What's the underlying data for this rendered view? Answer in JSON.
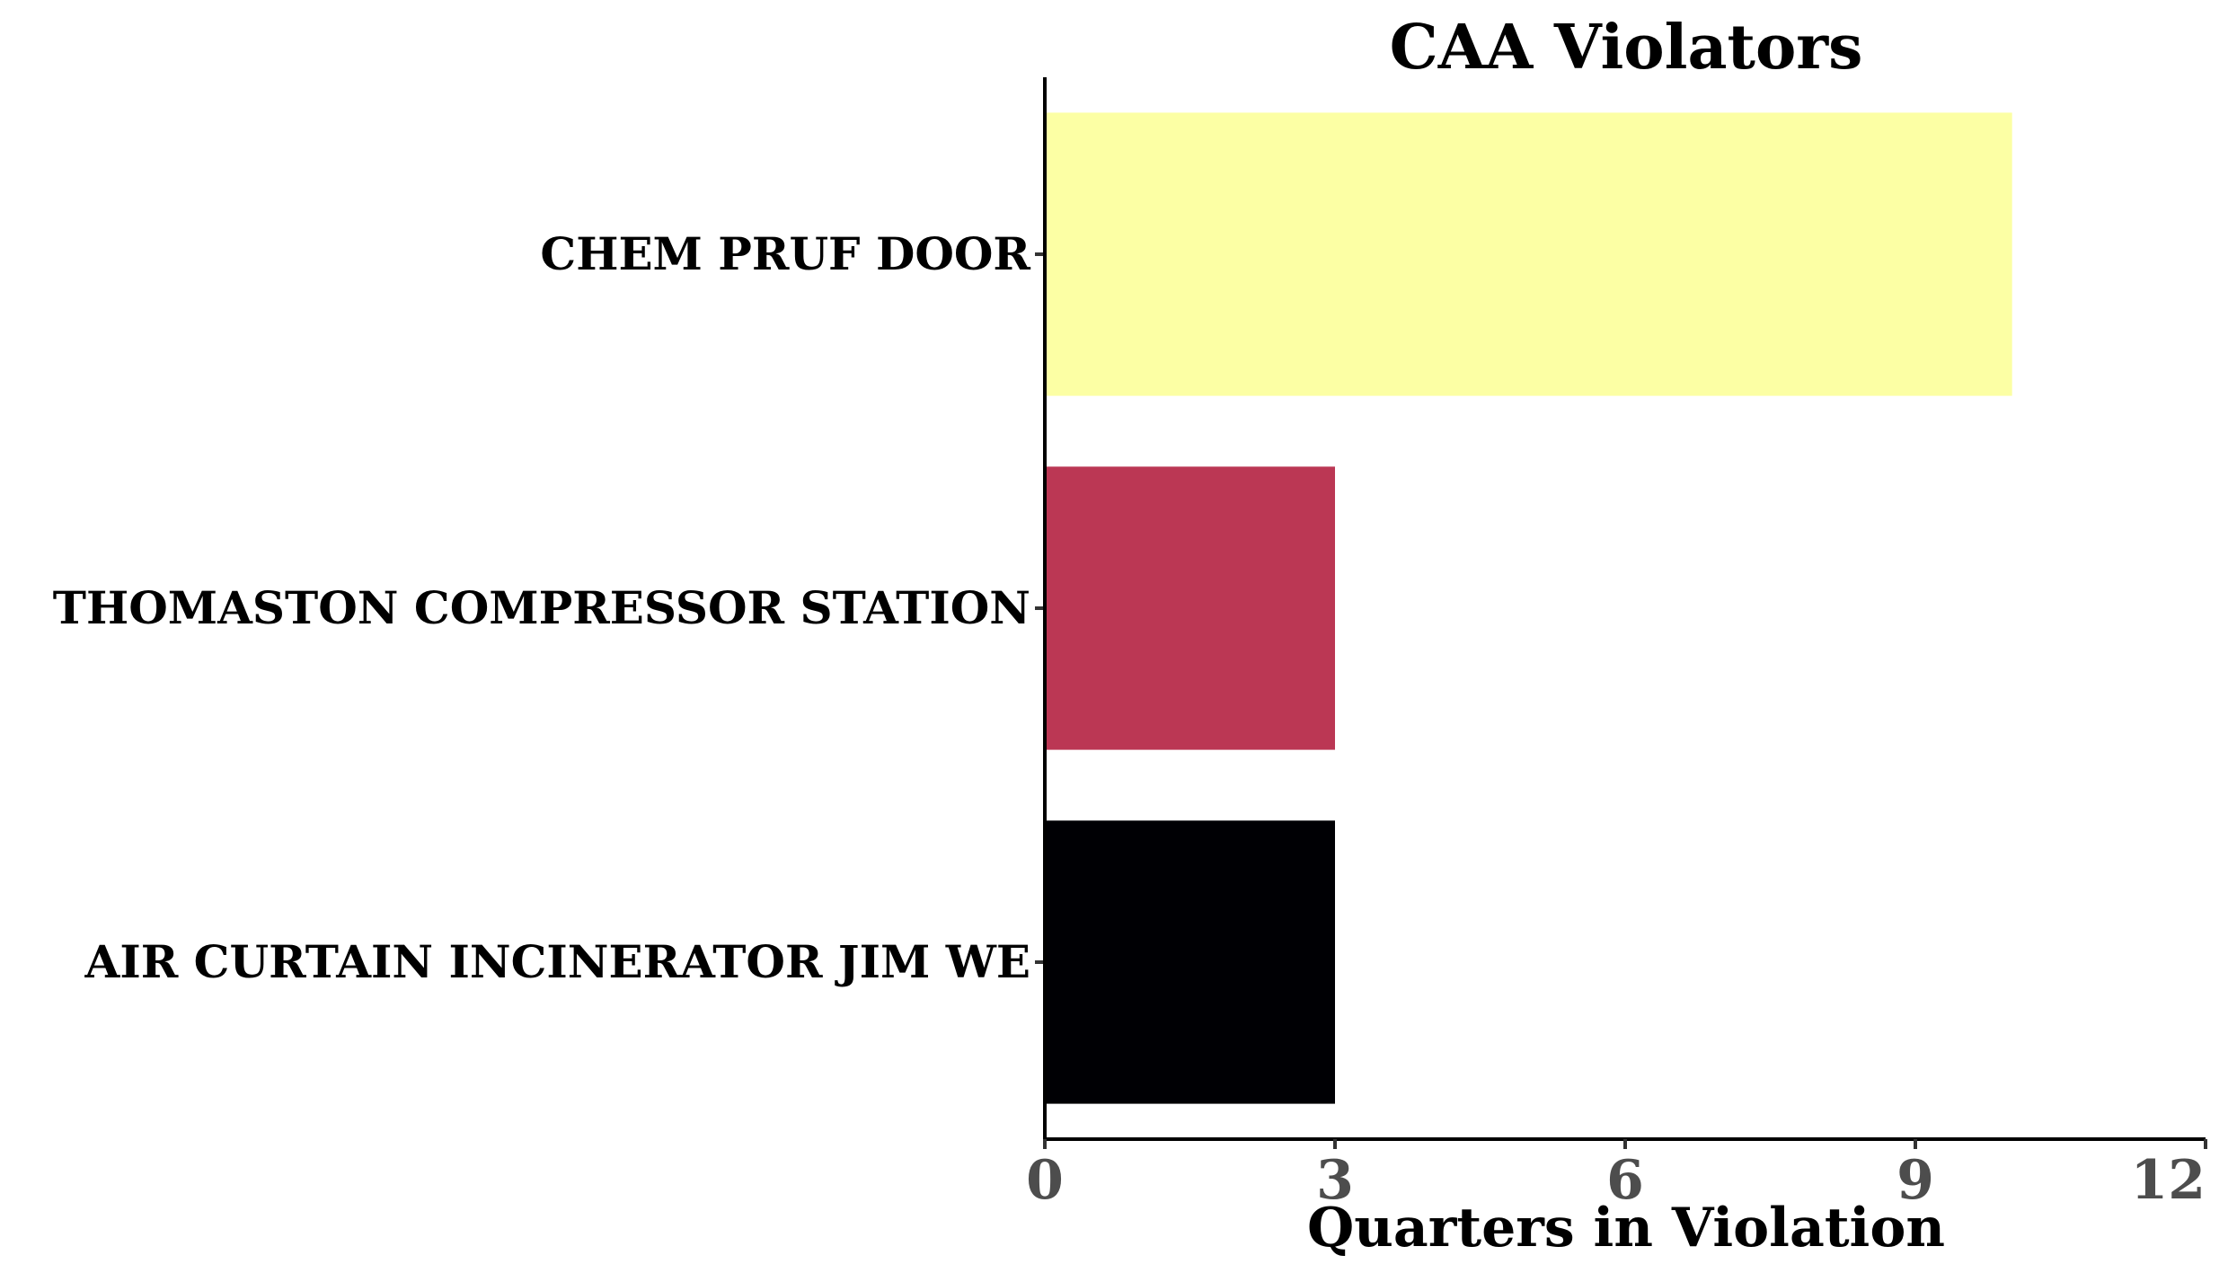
{
  "chart_data": {
    "type": "bar",
    "orientation": "horizontal",
    "title": "CAA Violators",
    "xlabel": "Quarters in Violation",
    "ylabel": "",
    "categories": [
      "CHEM PRUF DOOR",
      "THOMASTON COMPRESSOR STATION",
      "AIR CURTAIN INCINERATOR JIM WE"
    ],
    "values": [
      10,
      3,
      3
    ],
    "colors": [
      "#fcffa4",
      "#bb3754",
      "#000004"
    ],
    "xlim": [
      0,
      12
    ],
    "xticks": [
      0,
      3,
      6,
      9,
      12
    ],
    "xtick_labels": [
      "0",
      "3",
      "6",
      "9",
      "12"
    ],
    "grid": false,
    "legend": "none"
  }
}
